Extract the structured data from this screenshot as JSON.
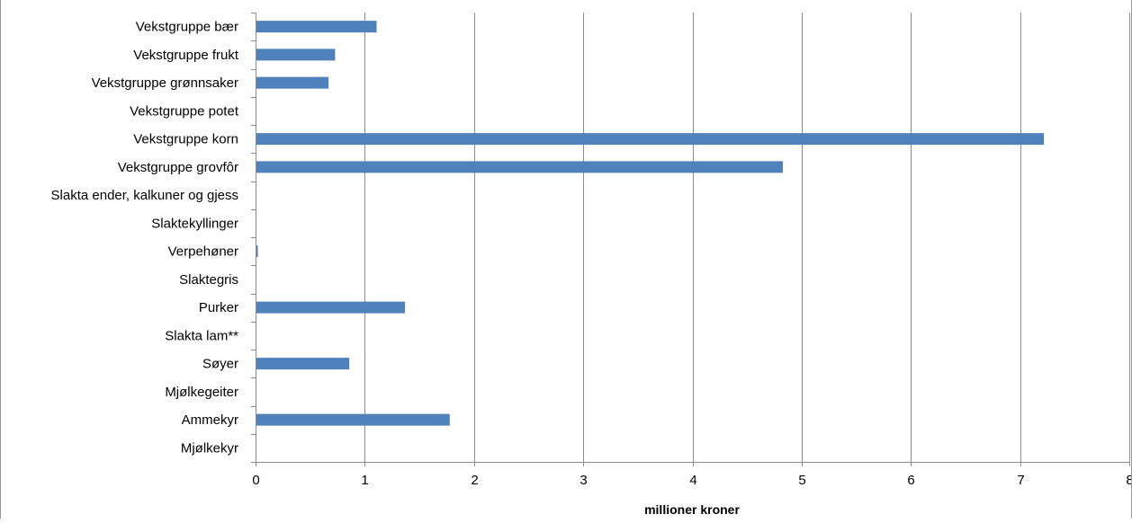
{
  "chart_data": {
    "type": "bar",
    "orientation": "horizontal",
    "categories": [
      "Vekstgruppe bær",
      "Vekstgruppe frukt",
      "Vekstgruppe grønnsaker",
      "Vekstgruppe potet",
      "Vekstgruppe korn",
      "Vekstgruppe grovfôr",
      "Slakta ender, kalkuner og gjess",
      "Slaktekyllinger",
      "Verpehøner",
      "Slaktegris",
      "Purker",
      "Slakta lam**",
      "Søyer",
      "Mjølkegeiter",
      "Ammekyr",
      "Mjølkekyr"
    ],
    "values": [
      1.1,
      0.72,
      0.66,
      0,
      7.21,
      4.82,
      0,
      0,
      0.01,
      0,
      1.36,
      0,
      0.85,
      0,
      1.77,
      0
    ],
    "title": "",
    "xlabel": "millioner kroner",
    "ylabel": "",
    "xlim": [
      0,
      8
    ],
    "xticks": [
      "0",
      "1",
      "2",
      "3",
      "4",
      "5",
      "6",
      "7",
      "8"
    ],
    "grid": true,
    "legend": "none",
    "bar_color": "#4f81bd"
  }
}
